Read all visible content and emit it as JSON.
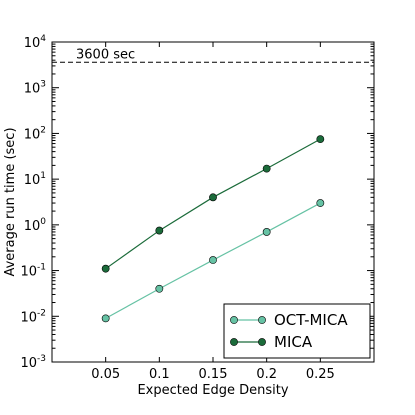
{
  "chart_data": {
    "type": "line",
    "title": "",
    "xlabel": "Expected Edge Density",
    "ylabel": "Average run time (sec)",
    "y_scale": "log",
    "xlim": [
      0.0,
      0.3
    ],
    "ylim": [
      0.001,
      10000
    ],
    "x_ticks": [
      "0.05",
      "0.1",
      "0.15",
      "0.2",
      "0.25"
    ],
    "y_ticks": [
      {
        "value": 0.001,
        "base": "10",
        "exp": "-3"
      },
      {
        "value": 0.01,
        "base": "10",
        "exp": "-2"
      },
      {
        "value": 0.1,
        "base": "10",
        "exp": "-1"
      },
      {
        "value": 1,
        "base": "10",
        "exp": "0"
      },
      {
        "value": 10,
        "base": "10",
        "exp": "1"
      },
      {
        "value": 100,
        "base": "10",
        "exp": "2"
      },
      {
        "value": 1000,
        "base": "10",
        "exp": "3"
      },
      {
        "value": 10000,
        "base": "10",
        "exp": "4"
      }
    ],
    "reference_line": {
      "value": 3600,
      "label": "3600 sec",
      "style": "dashed"
    },
    "legend_position": "lower-right",
    "grid": false,
    "series": [
      {
        "name": "OCT-MICA",
        "color": "#66c2a4",
        "marker": "circle",
        "x": [
          0.05,
          0.1,
          0.15,
          0.2,
          0.25
        ],
        "y": [
          0.009,
          0.04,
          0.17,
          0.7,
          3.0
        ]
      },
      {
        "name": "MICA",
        "color": "#1b6b3a",
        "marker": "circle",
        "x": [
          0.05,
          0.1,
          0.15,
          0.2,
          0.25
        ],
        "y": [
          0.11,
          0.75,
          4.0,
          17.0,
          75.0
        ]
      }
    ]
  }
}
